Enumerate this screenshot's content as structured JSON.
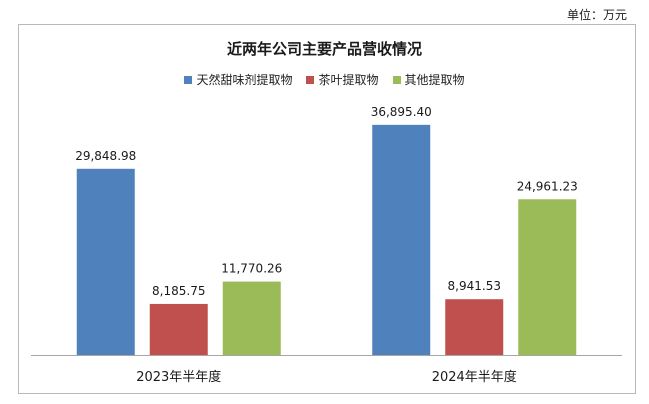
{
  "unit_label": "单位：万元",
  "chart_data": {
    "type": "bar",
    "title": "近两年公司主要产品营收情况",
    "xlabel": "",
    "ylabel": "",
    "ylim": [
      0,
      42000
    ],
    "grid": false,
    "legend_position": "top-center",
    "categories": [
      "2023年半年度",
      "2024年半年度"
    ],
    "series": [
      {
        "name": "天然甜味剂提取物",
        "color": "#4f81bd",
        "values": [
          29848.98,
          36895.4
        ],
        "labels": [
          "29,848.98",
          "36,895.40"
        ]
      },
      {
        "name": "茶叶提取物",
        "color": "#c0504d",
        "values": [
          8185.75,
          8941.53
        ],
        "labels": [
          "8,185.75",
          "8,941.53"
        ]
      },
      {
        "name": "其他提取物",
        "color": "#9bbb59",
        "values": [
          11770.26,
          24961.23
        ],
        "labels": [
          "11,770.26",
          "24,961.23"
        ]
      }
    ]
  }
}
